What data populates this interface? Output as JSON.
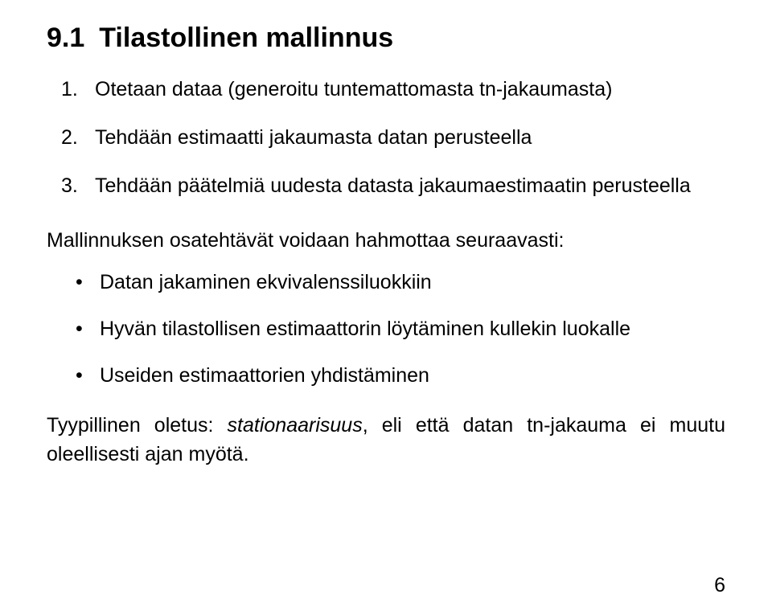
{
  "heading": {
    "number": "9.1",
    "title": "Tilastollinen mallinnus"
  },
  "steps": [
    {
      "n": "1.",
      "text": "Otetaan dataa (generoitu tuntemattomasta tn-jakaumasta)"
    },
    {
      "n": "2.",
      "text": "Tehdään estimaatti jakaumasta datan perusteella"
    },
    {
      "n": "3.",
      "text": "Tehdään päätelmiä uudesta datasta jakaumaestimaatin perusteella"
    }
  ],
  "intro_paragraph": "Mallinnuksen osatehtävät voidaan hahmottaa seuraavasti:",
  "bullets": [
    "Datan jakaminen ekvivalenssiluokkiin",
    "Hyvän tilastollisen estimaattorin löytäminen kullekin luokalle",
    "Useiden estimaattorien yhdistäminen"
  ],
  "closing": {
    "prefix": "Tyypillinen oletus: ",
    "emph": "stationaarisuus",
    "suffix": ", eli että datan tn-jakauma ei muutu oleellisesti ajan myötä."
  },
  "page_number": "6"
}
